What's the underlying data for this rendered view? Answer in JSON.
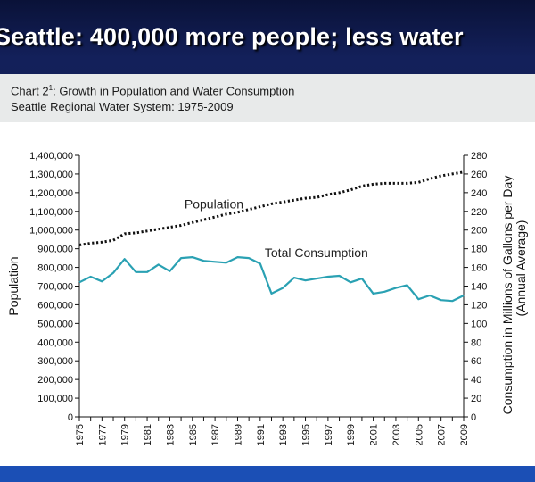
{
  "slide": {
    "title": "Seattle: 400,000 more people; less water"
  },
  "chart_data": {
    "type": "line",
    "title": "Chart 2",
    "title_superscript": "1",
    "title_rest": ": Growth in Population and Water Consumption",
    "subtitle": "Seattle Regional Water System: 1975-2009",
    "x": [
      1975,
      1976,
      1977,
      1978,
      1979,
      1980,
      1981,
      1982,
      1983,
      1984,
      1985,
      1986,
      1987,
      1988,
      1989,
      1990,
      1991,
      1992,
      1993,
      1994,
      1995,
      1996,
      1997,
      1998,
      1999,
      2000,
      2001,
      2002,
      2003,
      2004,
      2005,
      2006,
      2007,
      2008,
      2009
    ],
    "xtick_labels": [
      "1975",
      "1977",
      "1979",
      "1981",
      "1983",
      "1985",
      "1987",
      "1989",
      "1991",
      "1993",
      "1995",
      "1997",
      "1999",
      "2001",
      "2003",
      "2005",
      "2007",
      "2009"
    ],
    "y_left": {
      "label": "Population",
      "min": 0,
      "max": 1400000,
      "step": 100000,
      "tick_labels": [
        "0",
        "100,000",
        "200,000",
        "300,000",
        "400,000",
        "500,000",
        "600,000",
        "700,000",
        "800,000",
        "900,000",
        "1,000,000",
        "1,100,000",
        "1,200,000",
        "1,300,000",
        "1,400,000"
      ]
    },
    "y_right": {
      "label_line1": "Consumption in Millions of Gallons per Day",
      "label_line2": "(Annual Average)",
      "min": 0,
      "max": 280,
      "step": 20,
      "tick_labels": [
        "0",
        "20",
        "40",
        "60",
        "80",
        "100",
        "120",
        "140",
        "160",
        "180",
        "200",
        "220",
        "240",
        "260",
        "280"
      ]
    },
    "series": [
      {
        "name": "Population",
        "axis": "left",
        "style": "dotted",
        "color": "#111111",
        "values": [
          920000,
          930000,
          935000,
          945000,
          980000,
          985000,
          995000,
          1005000,
          1015000,
          1025000,
          1040000,
          1055000,
          1070000,
          1085000,
          1095000,
          1110000,
          1125000,
          1140000,
          1150000,
          1160000,
          1170000,
          1175000,
          1190000,
          1200000,
          1215000,
          1235000,
          1245000,
          1250000,
          1250000,
          1250000,
          1255000,
          1275000,
          1290000,
          1300000,
          1310000
        ]
      },
      {
        "name": "Total Consumption",
        "axis": "right",
        "style": "solid",
        "color": "#2aa1b3",
        "values": [
          144,
          150,
          145,
          154,
          169,
          155,
          155,
          163,
          156,
          170,
          171,
          167,
          166,
          165,
          171,
          170,
          164,
          132,
          138,
          149,
          146,
          148,
          150,
          151,
          144,
          148,
          132,
          134,
          138,
          141,
          126,
          130,
          125,
          124,
          130
        ]
      }
    ],
    "annotations": [
      {
        "text": "Population",
        "x": 1984.3,
        "axis": "left",
        "y": 1115000
      },
      {
        "text": "Total Consumption",
        "x": 1991.4,
        "axis": "right",
        "y": 171
      }
    ],
    "grid": false
  }
}
